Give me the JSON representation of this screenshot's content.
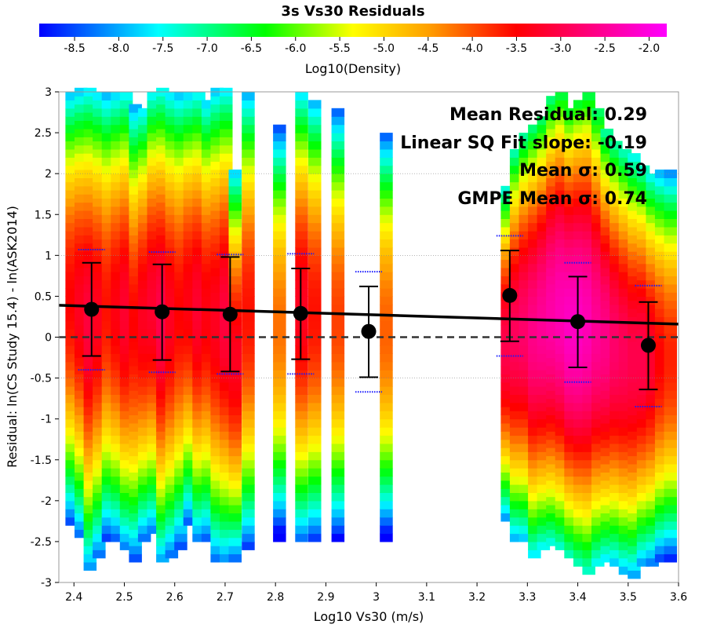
{
  "chart_data": {
    "type": "heatmap",
    "title": "3s Vs30 Residuals",
    "colorbar": {
      "label": "Log10(Density)",
      "ticks": [
        -8.5,
        -8.0,
        -7.5,
        -7.0,
        -6.5,
        -6.0,
        -5.5,
        -5.0,
        -4.5,
        -4.0,
        -3.5,
        -3.0,
        -2.5,
        -2.0
      ],
      "tick_labels": [
        "-8.5",
        "-8.0",
        "-7.5",
        "-7.0",
        "-6.5",
        "-6.0",
        "-5.5",
        "-5.0",
        "-4.5",
        "-4.0",
        "-3.5",
        "-3.0",
        "-2.5",
        "-2.0"
      ],
      "range": [
        -8.9,
        -1.8
      ]
    },
    "xlabel": "Log10 Vs30 (m/s)",
    "ylabel": "Residual: ln(CS Study 15.4) - ln(ASK2014)",
    "xlim": [
      2.37,
      3.6
    ],
    "ylim": [
      -3,
      3
    ],
    "xticks": [
      2.4,
      2.5,
      2.6,
      2.7,
      2.8,
      2.9,
      3.0,
      3.1,
      3.2,
      3.3,
      3.4,
      3.5,
      3.6
    ],
    "xtick_labels": [
      "2.4",
      "2.5",
      "2.6",
      "2.7",
      "2.8",
      "2.9",
      "3",
      "3.1",
      "3.2",
      "3.3",
      "3.4",
      "3.5",
      "3.6"
    ],
    "yticks": [
      -3,
      -2.5,
      -2,
      -1.5,
      -1,
      -0.5,
      0,
      0.5,
      1,
      1.5,
      2,
      2.5,
      3
    ],
    "ytick_labels": [
      "-3",
      "-2.5",
      "-2",
      "-1.5",
      "-1",
      "-0.5",
      "0",
      "0.5",
      "1",
      "1.5",
      "2",
      "2.5",
      "3"
    ],
    "grid_y": [
      2,
      1,
      -0.5
    ],
    "zero_line": 0,
    "heatmap_columns": [
      {
        "x": 2.396,
        "ymin": -2.3,
        "ymax": 3.0,
        "peak": -3.5
      },
      {
        "x": 2.414,
        "ymin": -2.45,
        "ymax": 3.0,
        "peak": -3.3
      },
      {
        "x": 2.432,
        "ymin": -2.85,
        "ymax": 3.0,
        "peak": -3.1
      },
      {
        "x": 2.45,
        "ymin": -2.7,
        "ymax": 3.0,
        "peak": -3.3
      },
      {
        "x": 2.468,
        "ymin": -2.5,
        "ymax": 3.0,
        "peak": -3.6
      },
      {
        "x": 2.486,
        "ymin": -2.5,
        "ymax": 3.0,
        "peak": -3.4
      },
      {
        "x": 2.504,
        "ymin": -2.6,
        "ymax": 3.0,
        "peak": -3.2
      },
      {
        "x": 2.522,
        "ymin": -2.75,
        "ymax": 2.8,
        "peak": -3.5
      },
      {
        "x": 2.54,
        "ymin": -2.5,
        "ymax": 2.8,
        "peak": -3.3
      },
      {
        "x": 2.558,
        "ymin": -2.4,
        "ymax": 3.0,
        "peak": -3.2
      },
      {
        "x": 2.576,
        "ymin": -2.75,
        "ymax": 3.0,
        "peak": -3.0
      },
      {
        "x": 2.594,
        "ymin": -2.7,
        "ymax": 3.0,
        "peak": -3.3
      },
      {
        "x": 2.612,
        "ymin": -2.6,
        "ymax": 3.0,
        "peak": -3.5
      },
      {
        "x": 2.63,
        "ymin": -2.3,
        "ymax": 3.0,
        "peak": -3.4
      },
      {
        "x": 2.648,
        "ymin": -2.5,
        "ymax": 3.0,
        "peak": -3.2
      },
      {
        "x": 2.666,
        "ymin": -2.5,
        "ymax": 2.9,
        "peak": -3.4
      },
      {
        "x": 2.684,
        "ymin": -2.75,
        "ymax": 3.0,
        "peak": -3.3
      },
      {
        "x": 2.702,
        "ymin": -2.75,
        "ymax": 3.0,
        "peak": -3.1
      },
      {
        "x": 2.72,
        "ymin": -2.75,
        "ymax": 2.0,
        "peak": -3.3
      },
      {
        "x": 2.746,
        "ymin": -2.6,
        "ymax": 3.0,
        "peak": -3.6
      },
      {
        "x": 2.808,
        "ymin": -2.5,
        "ymax": 2.6,
        "peak": -4.2
      },
      {
        "x": 2.852,
        "ymin": -2.5,
        "ymax": 3.0,
        "peak": -3.3
      },
      {
        "x": 2.878,
        "ymin": -2.5,
        "ymax": 2.9,
        "peak": -3.6
      },
      {
        "x": 2.924,
        "ymin": -2.5,
        "ymax": 2.75,
        "peak": -3.9
      },
      {
        "x": 3.02,
        "ymin": -2.5,
        "ymax": 2.5,
        "peak": -4.1
      },
      {
        "x": 3.26,
        "ymin": -2.25,
        "ymax": 1.8,
        "peak": -3.0
      },
      {
        "x": 3.278,
        "ymin": -2.5,
        "ymax": 2.3,
        "peak": -2.9
      },
      {
        "x": 3.296,
        "ymin": -2.5,
        "ymax": 2.5,
        "peak": -2.8
      },
      {
        "x": 3.314,
        "ymin": -2.7,
        "ymax": 2.6,
        "peak": -2.6
      },
      {
        "x": 3.332,
        "ymin": -2.6,
        "ymax": 2.7,
        "peak": -2.5
      },
      {
        "x": 3.35,
        "ymin": -2.55,
        "ymax": 2.9,
        "peak": -2.4
      },
      {
        "x": 3.368,
        "ymin": -2.6,
        "ymax": 3.0,
        "peak": -2.3
      },
      {
        "x": 3.386,
        "ymin": -2.7,
        "ymax": 2.8,
        "peak": -2.2
      },
      {
        "x": 3.404,
        "ymin": -2.8,
        "ymax": 2.9,
        "peak": -2.2
      },
      {
        "x": 3.422,
        "ymin": -2.9,
        "ymax": 3.0,
        "peak": -2.3
      },
      {
        "x": 3.44,
        "ymin": -2.8,
        "ymax": 2.8,
        "peak": -2.5
      },
      {
        "x": 3.458,
        "ymin": -2.75,
        "ymax": 2.5,
        "peak": -2.6
      },
      {
        "x": 3.476,
        "ymin": -2.8,
        "ymax": 2.4,
        "peak": -2.8
      },
      {
        "x": 3.494,
        "ymin": -2.9,
        "ymax": 2.3,
        "peak": -2.9
      },
      {
        "x": 3.512,
        "ymin": -2.95,
        "ymax": 2.2,
        "peak": -3.0
      },
      {
        "x": 3.53,
        "ymin": -2.8,
        "ymax": 2.1,
        "peak": -3.0
      },
      {
        "x": 3.548,
        "ymin": -2.8,
        "ymax": 2.0,
        "peak": -3.2
      },
      {
        "x": 3.566,
        "ymin": -2.75,
        "ymax": 2.0,
        "peak": -3.5
      },
      {
        "x": 3.584,
        "ymin": -2.75,
        "ymax": 2.0,
        "peak": -3.7
      }
    ],
    "bin_means": [
      {
        "x": 2.435,
        "mean": 0.34,
        "lo": -0.23,
        "hi": 0.91,
        "dlo": -0.4,
        "dhi": 1.07
      },
      {
        "x": 2.575,
        "mean": 0.31,
        "lo": -0.28,
        "hi": 0.89,
        "dlo": -0.43,
        "dhi": 1.04
      },
      {
        "x": 2.71,
        "mean": 0.28,
        "lo": -0.42,
        "hi": 0.98,
        "dlo": -0.45,
        "dhi": 1.01
      },
      {
        "x": 2.85,
        "mean": 0.29,
        "lo": -0.27,
        "hi": 0.84,
        "dlo": -0.45,
        "dhi": 1.02
      },
      {
        "x": 2.985,
        "mean": 0.07,
        "lo": -0.49,
        "hi": 0.62,
        "dlo": -0.67,
        "dhi": 0.8
      },
      {
        "x": 3.265,
        "mean": 0.51,
        "lo": -0.05,
        "hi": 1.06,
        "dlo": -0.23,
        "dhi": 1.24
      },
      {
        "x": 3.4,
        "mean": 0.19,
        "lo": -0.37,
        "hi": 0.74,
        "dlo": -0.55,
        "dhi": 0.91
      },
      {
        "x": 3.54,
        "mean": -0.1,
        "lo": -0.64,
        "hi": 0.43,
        "dlo": -0.85,
        "dhi": 0.63
      }
    ],
    "fit_line": {
      "x": [
        2.37,
        3.6
      ],
      "y": [
        0.39,
        0.16
      ]
    },
    "annotations": [
      "Mean Residual: 0.29",
      "Linear SQ Fit slope: -0.19",
      "Mean σ: 0.59",
      "GMPE Mean σ: 0.74"
    ]
  }
}
